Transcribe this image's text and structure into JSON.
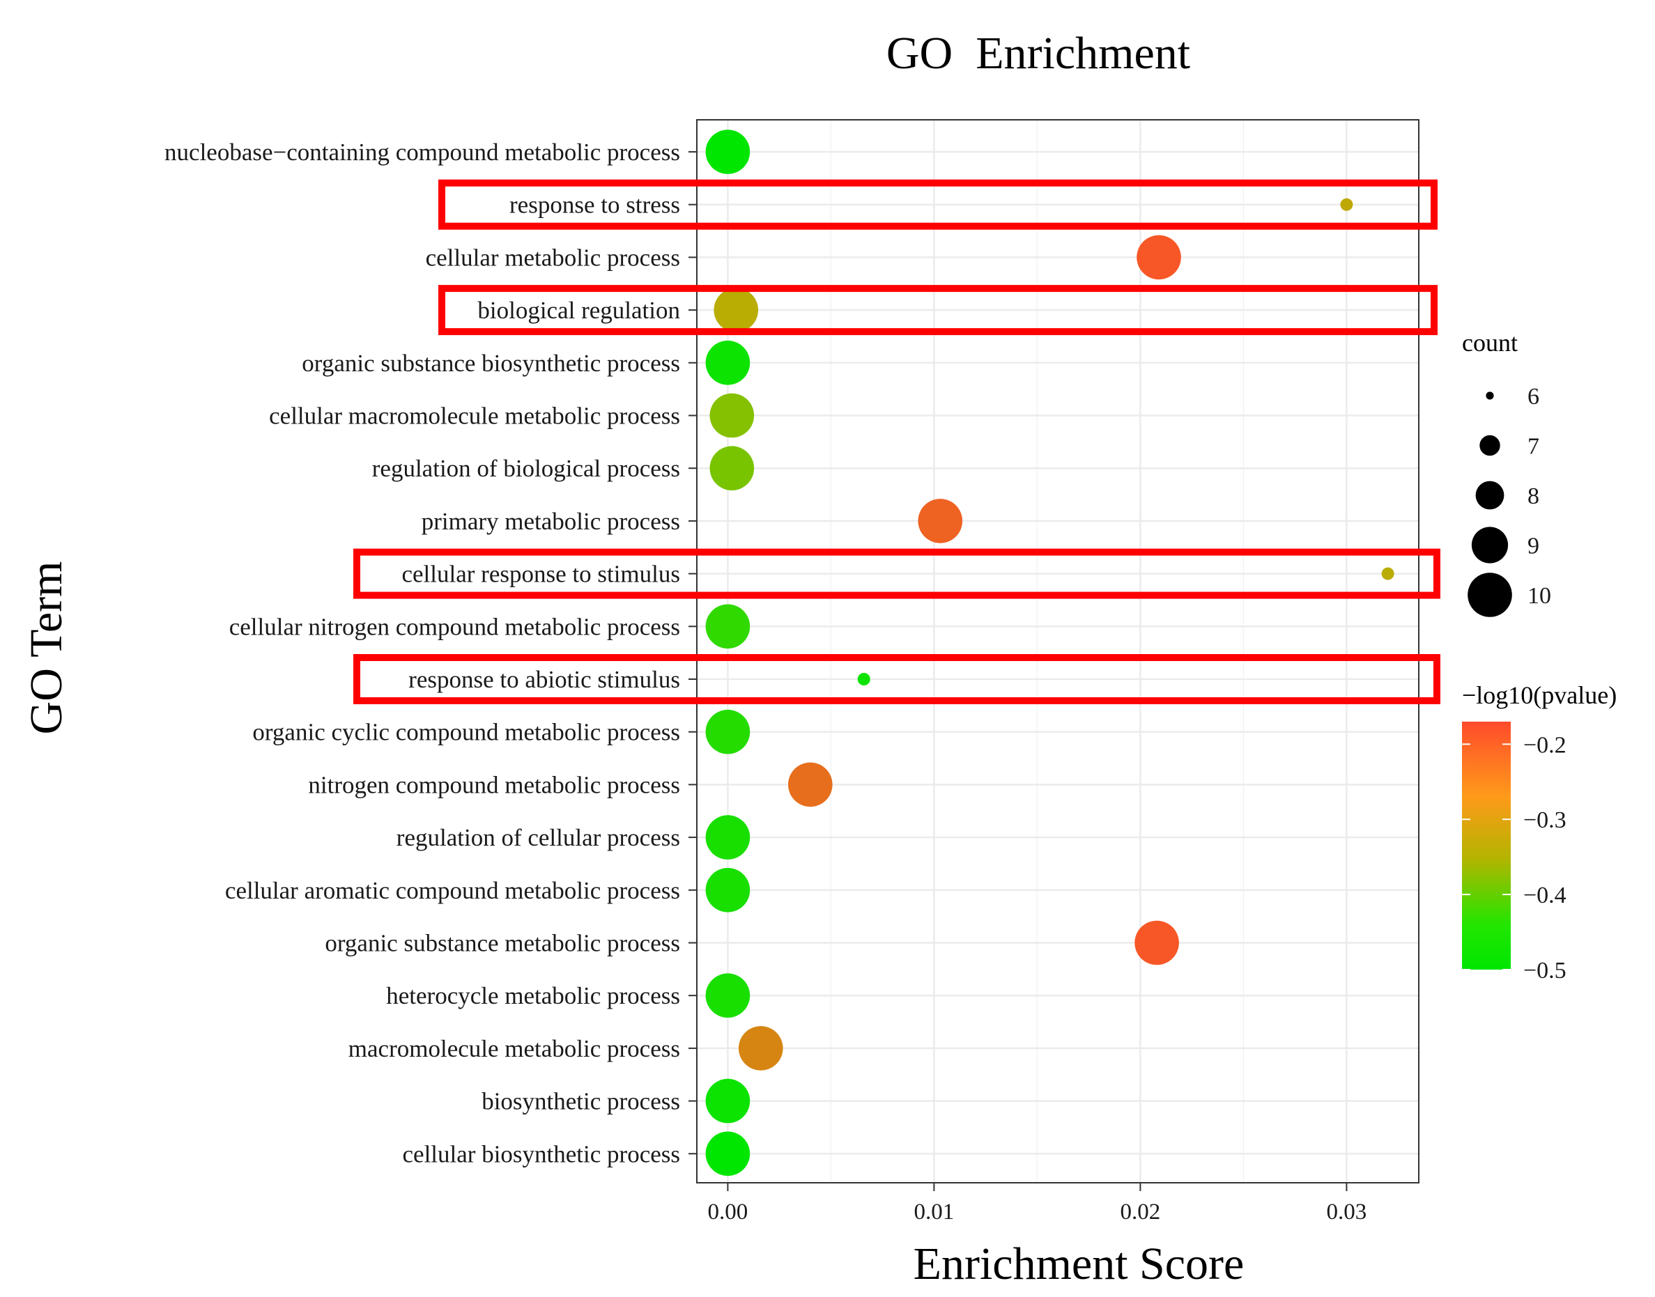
{
  "chart_data": {
    "type": "scatter",
    "title": "GO  Enrichment",
    "xlabel": "Enrichment Score",
    "ylabel": "GO Term",
    "xlim": [
      -0.0015,
      0.0335
    ],
    "x_ticks": [
      0.0,
      0.01,
      0.02,
      0.03
    ],
    "x_tick_labels": [
      "0.00",
      "0.01",
      "0.02",
      "0.03"
    ],
    "grid": true,
    "categories": [
      "nucleobase−containing compound metabolic process",
      "response to stress",
      "cellular metabolic process",
      "biological regulation",
      "organic substance biosynthetic process",
      "cellular macromolecule metabolic process",
      "regulation of biological process",
      "primary metabolic process",
      "cellular response to stimulus",
      "cellular nitrogen compound metabolic process",
      "response to abiotic stimulus",
      "organic cyclic compound metabolic process",
      "nitrogen compound metabolic process",
      "regulation of cellular process",
      "cellular aromatic compound metabolic process",
      "organic substance metabolic process",
      "heterocycle metabolic process",
      "macromolecule metabolic process",
      "biosynthetic process",
      "cellular biosynthetic process"
    ],
    "points": [
      {
        "term": "nucleobase−containing compound metabolic process",
        "x": 0.0,
        "count": 10,
        "neg_log10_p": -0.5
      },
      {
        "term": "response to stress",
        "x": 0.03,
        "count": 6,
        "neg_log10_p": -0.33
      },
      {
        "term": "cellular metabolic process",
        "x": 0.0209,
        "count": 10,
        "neg_log10_p": -0.19
      },
      {
        "term": "biological regulation",
        "x": 0.0004,
        "count": 10,
        "neg_log10_p": -0.34
      },
      {
        "term": "organic substance biosynthetic process",
        "x": 0.0,
        "count": 10,
        "neg_log10_p": -0.49
      },
      {
        "term": "cellular macromolecule metabolic process",
        "x": 0.0002,
        "count": 10,
        "neg_log10_p": -0.39
      },
      {
        "term": "regulation of biological process",
        "x": 0.0002,
        "count": 10,
        "neg_log10_p": -0.4
      },
      {
        "term": "primary metabolic process",
        "x": 0.0103,
        "count": 10,
        "neg_log10_p": -0.21
      },
      {
        "term": "cellular response to stimulus",
        "x": 0.032,
        "count": 6,
        "neg_log10_p": -0.34
      },
      {
        "term": "cellular nitrogen compound metabolic process",
        "x": 0.0,
        "count": 10,
        "neg_log10_p": -0.46
      },
      {
        "term": "response to abiotic stimulus",
        "x": 0.0066,
        "count": 6,
        "neg_log10_p": -0.49
      },
      {
        "term": "organic cyclic compound metabolic process",
        "x": 0.0,
        "count": 10,
        "neg_log10_p": -0.47
      },
      {
        "term": "nitrogen compound metabolic process",
        "x": 0.004,
        "count": 10,
        "neg_log10_p": -0.23
      },
      {
        "term": "regulation of cellular process",
        "x": 0.0,
        "count": 10,
        "neg_log10_p": -0.48
      },
      {
        "term": "cellular aromatic compound metabolic process",
        "x": 0.0,
        "count": 10,
        "neg_log10_p": -0.48
      },
      {
        "term": "organic substance metabolic process",
        "x": 0.0208,
        "count": 10,
        "neg_log10_p": -0.19
      },
      {
        "term": "heterocycle metabolic process",
        "x": 0.0,
        "count": 10,
        "neg_log10_p": -0.48
      },
      {
        "term": "macromolecule metabolic process",
        "x": 0.0016,
        "count": 10,
        "neg_log10_p": -0.27
      },
      {
        "term": "biosynthetic process",
        "x": 0.0,
        "count": 10,
        "neg_log10_p": -0.49
      },
      {
        "term": "cellular biosynthetic process",
        "x": 0.0,
        "count": 10,
        "neg_log10_p": -0.5
      }
    ],
    "highlighted_terms": [
      "response to stress",
      "biological regulation",
      "cellular response to stimulus",
      "response to abiotic stimulus"
    ],
    "highlight_color": "#ff0000",
    "size_legend": {
      "title": "count",
      "values": [
        6,
        7,
        8,
        9,
        10
      ],
      "labels": [
        "6",
        "7",
        "8",
        "9",
        "10"
      ]
    },
    "color_legend": {
      "title": "−log10(pvalue)",
      "range": [
        -0.5,
        -0.17
      ],
      "ticks": [
        -0.2,
        -0.3,
        -0.4,
        -0.5
      ],
      "tick_labels": [
        "−0.2",
        "−0.3",
        "−0.4",
        "−0.5"
      ],
      "low_color": "#00e600",
      "mid_color": "#b4b400",
      "high_color": "#ff4b2b"
    }
  }
}
